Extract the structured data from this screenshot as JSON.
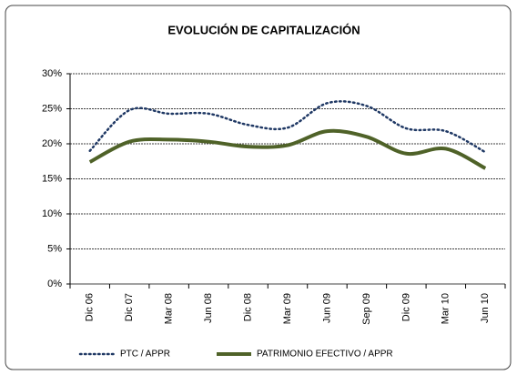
{
  "chart_data": {
    "type": "line",
    "title": "EVOLUCIÓN DE CAPITALIZACIÓN",
    "categories": [
      "Dic 06",
      "Dic 07",
      "Mar 08",
      "Jun 08",
      "Dic 08",
      "Mar 09",
      "Jun 09",
      "Sep 09",
      "Dic 09",
      "Mar 10",
      "Jun 10"
    ],
    "series": [
      {
        "name": "PTC / APPR",
        "color": "#1f3864",
        "dashed": true,
        "values": [
          19.0,
          24.8,
          24.3,
          24.3,
          22.7,
          22.3,
          25.8,
          25.4,
          22.2,
          21.8,
          18.8
        ]
      },
      {
        "name": "PATRIMONIO EFECTIVO / APPR",
        "color": "#4f6228",
        "dashed": false,
        "values": [
          17.4,
          20.3,
          20.6,
          20.3,
          19.6,
          19.8,
          21.8,
          21.0,
          18.6,
          19.3,
          16.5
        ]
      }
    ],
    "ylim": [
      0,
      30
    ],
    "yticks": [
      {
        "value": 0,
        "label": "0%"
      },
      {
        "value": 5,
        "label": "5%"
      },
      {
        "value": 10,
        "label": "10%"
      },
      {
        "value": 15,
        "label": "15%"
      },
      {
        "value": 20,
        "label": "20%"
      },
      {
        "value": 25,
        "label": "25%"
      },
      {
        "value": 30,
        "label": "30%"
      }
    ],
    "grid": true,
    "smooth": true,
    "legend": "bottom"
  }
}
